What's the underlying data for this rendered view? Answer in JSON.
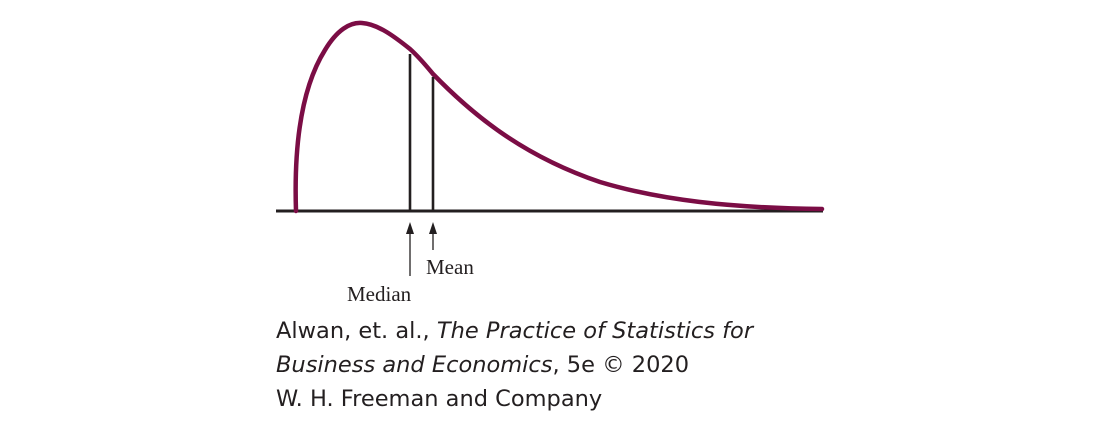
{
  "figure": {
    "labels": {
      "median": "Median",
      "mean": "Mean"
    },
    "colors": {
      "curve": "#7b0d45",
      "axis": "#231f20",
      "text": "#231f20"
    }
  },
  "credit": {
    "line1_plain": "Alwan, et. al., ",
    "line1_italic": "The Practice of Statistics for",
    "line2_italic": "Business and Economics",
    "line2_plain": ", 5e © 2020",
    "line3": "W. H. Freeman and Company"
  }
}
